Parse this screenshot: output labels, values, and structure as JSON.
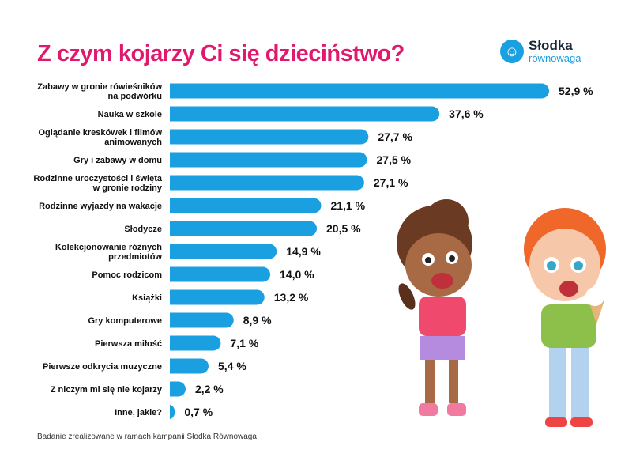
{
  "title": "Z czym kojarzy Ci się dzieciństwo?",
  "logo": {
    "line1": "Słodka",
    "line2": "równowaga"
  },
  "footer": "Badanie zrealizowane w ramach kampanii Słodka Równowaga",
  "colors": {
    "bar": "#1a9fe0",
    "title": "#e0196e"
  },
  "chart_data": {
    "type": "bar",
    "orientation": "horizontal",
    "title": "Z czym kojarzy Ci się dzieciństwo?",
    "unit": "%",
    "categories": [
      [
        "Zabawy w gronie rówieśników",
        "na podwórku"
      ],
      [
        "Nauka w szkole"
      ],
      [
        "Oglądanie kreskówek i filmów",
        "animowanych"
      ],
      [
        "Gry i zabawy w domu"
      ],
      [
        "Rodzinne uroczystości i święta",
        "w gronie rodziny"
      ],
      [
        "Rodzinne wyjazdy na wakacje"
      ],
      [
        "Słodycze"
      ],
      [
        "Kolekcjonowanie różnych",
        "przedmiotów"
      ],
      [
        "Pomoc rodzicom"
      ],
      [
        "Książki"
      ],
      [
        "Gry komputerowe"
      ],
      [
        "Pierwsza miłość"
      ],
      [
        "Pierwsze odkrycia muzyczne"
      ],
      [
        "Z niczym mi się nie kojarzy"
      ],
      [
        "Inne, jakie?"
      ]
    ],
    "values": [
      52.9,
      37.6,
      27.7,
      27.5,
      27.1,
      21.1,
      20.5,
      14.9,
      14.0,
      13.2,
      8.9,
      7.1,
      5.4,
      2.2,
      0.7
    ],
    "value_labels": [
      "52,9 %",
      "37,6 %",
      "27,7 %",
      "27,5 %",
      "27,1 %",
      "21,1 %",
      "20,5 %",
      "14,9 %",
      "14,0 %",
      "13,2 %",
      "8,9 %",
      "7,1 %",
      "5,4 %",
      "2,2 %",
      "0,7 %"
    ],
    "xlim": [
      0,
      52.9
    ],
    "grid": false,
    "legend": "none"
  }
}
